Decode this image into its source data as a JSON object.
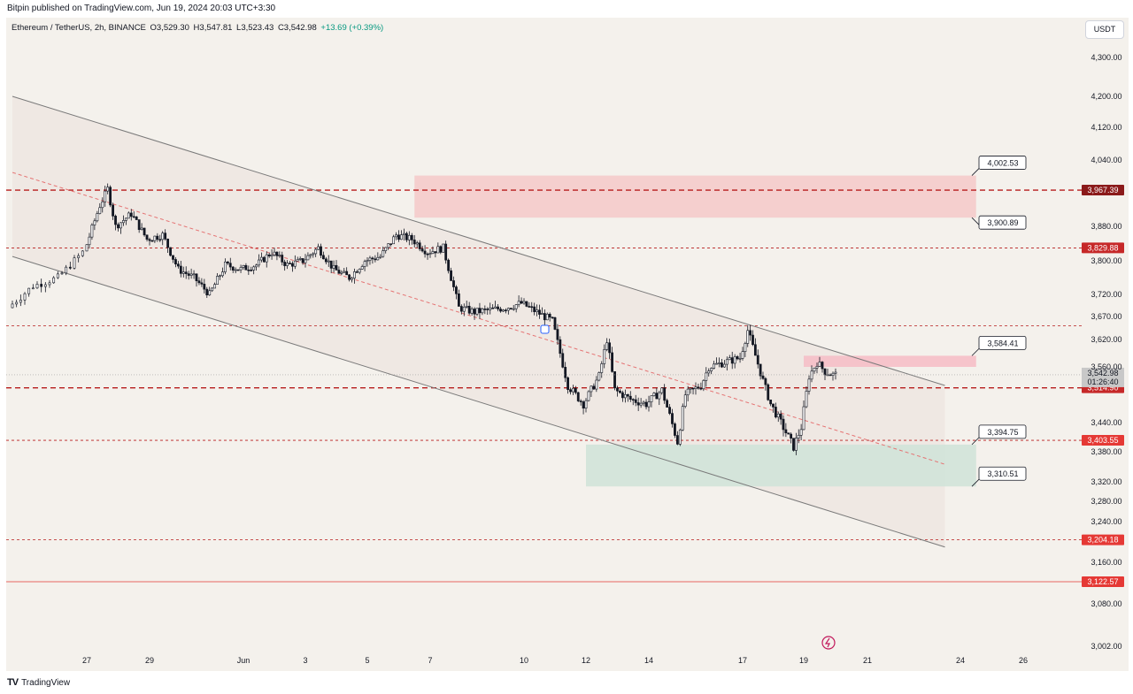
{
  "header": {
    "published_line": "Bitpin published on TradingView.com, Jun 19, 2024 20:03 UTC+3:30"
  },
  "legend": {
    "symbol": "Ethereum / TetherUS, 2h, BINANCE",
    "open": "O3,529.30",
    "high": "H3,547.81",
    "low": "L3,523.43",
    "close": "C3,542.98",
    "change": "+13.69 (+0.39%)"
  },
  "currency_button": "USDT",
  "footer": {
    "brand": "TradingView",
    "icon": "tradingview-logo-icon"
  },
  "colors": {
    "background": "#f4f1ec",
    "up_candle": "#131722",
    "resistance_zone": "#f4c9c9",
    "support_zone": "#cfe3d8",
    "dashed_level": "#b71c1c",
    "price_label_red": "#e53935",
    "price_label_dark": "#8b1a1a"
  },
  "chart_data": {
    "type": "candlestick",
    "symbol": "Ethereum / TetherUS",
    "interval": "2h",
    "exchange": "BINANCE",
    "y_range": [
      2980,
      4330
    ],
    "x_range_days": [
      "May 25",
      "Jun 26"
    ],
    "y_ticks": [
      "4,300.00",
      "4,200.00",
      "4,120.00",
      "4,040.00",
      "3,880.00",
      "3,800.00",
      "3,720.00",
      "3,670.00",
      "3,620.00",
      "3,560.00",
      "3,440.00",
      "3,380.00",
      "3,320.00",
      "3,280.00",
      "3,240.00",
      "3,160.00",
      "3,080.00",
      "3,002.00"
    ],
    "y_tick_values": [
      4300,
      4200,
      4120,
      4040,
      3880,
      3800,
      3720,
      3670,
      3620,
      3560,
      3440,
      3380,
      3320,
      3280,
      3240,
      3160,
      3080,
      3002
    ],
    "x_ticks": [
      {
        "label": "27",
        "date": "2024-05-27"
      },
      {
        "label": "29",
        "date": "2024-05-29"
      },
      {
        "label": "Jun",
        "date": "2024-06-01"
      },
      {
        "label": "3",
        "date": "2024-06-03"
      },
      {
        "label": "5",
        "date": "2024-06-05"
      },
      {
        "label": "7",
        "date": "2024-06-07"
      },
      {
        "label": "10",
        "date": "2024-06-10"
      },
      {
        "label": "12",
        "date": "2024-06-12"
      },
      {
        "label": "14",
        "date": "2024-06-14"
      },
      {
        "label": "17",
        "date": "2024-06-17"
      },
      {
        "label": "19",
        "date": "2024-06-19"
      },
      {
        "label": "21",
        "date": "2024-06-21"
      },
      {
        "label": "24",
        "date": "2024-06-24"
      },
      {
        "label": "26",
        "date": "2024-06-26"
      }
    ],
    "price_path": [
      [
        "2024-05-25T12:00",
        3690
      ],
      [
        "2024-05-26T00:00",
        3740
      ],
      [
        "2024-05-26T12:00",
        3760
      ],
      [
        "2024-05-27T00:00",
        3820
      ],
      [
        "2024-05-27T12:00",
        3930
      ],
      [
        "2024-05-27T18:00",
        3970
      ],
      [
        "2024-05-28T00:00",
        3880
      ],
      [
        "2024-05-28T12:00",
        3910
      ],
      [
        "2024-05-29T00:00",
        3850
      ],
      [
        "2024-05-29T12:00",
        3860
      ],
      [
        "2024-05-30T00:00",
        3780
      ],
      [
        "2024-05-30T12:00",
        3760
      ],
      [
        "2024-05-31T00:00",
        3720
      ],
      [
        "2024-05-31T12:00",
        3790
      ],
      [
        "2024-06-01T00:00",
        3780
      ],
      [
        "2024-06-01T12:00",
        3790
      ],
      [
        "2024-06-02T00:00",
        3820
      ],
      [
        "2024-06-02T12:00",
        3790
      ],
      [
        "2024-06-03T00:00",
        3800
      ],
      [
        "2024-06-03T12:00",
        3830
      ],
      [
        "2024-06-04T00:00",
        3780
      ],
      [
        "2024-06-04T12:00",
        3760
      ],
      [
        "2024-06-05T00:00",
        3800
      ],
      [
        "2024-06-05T12:00",
        3810
      ],
      [
        "2024-06-06T00:00",
        3860
      ],
      [
        "2024-06-06T12:00",
        3850
      ],
      [
        "2024-06-07T00:00",
        3820
      ],
      [
        "2024-06-07T12:00",
        3830
      ],
      [
        "2024-06-08T00:00",
        3690
      ],
      [
        "2024-06-08T12:00",
        3680
      ],
      [
        "2024-06-09T00:00",
        3685
      ],
      [
        "2024-06-09T12:00",
        3690
      ],
      [
        "2024-06-10T00:00",
        3700
      ],
      [
        "2024-06-10T12:00",
        3680
      ],
      [
        "2024-06-11T00:00",
        3660
      ],
      [
        "2024-06-11T12:00",
        3520
      ],
      [
        "2024-06-12T00:00",
        3480
      ],
      [
        "2024-06-12T12:00",
        3540
      ],
      [
        "2024-06-12T18:00",
        3620
      ],
      [
        "2024-06-13T00:00",
        3510
      ],
      [
        "2024-06-13T12:00",
        3490
      ],
      [
        "2024-06-14T00:00",
        3480
      ],
      [
        "2024-06-14T12:00",
        3510
      ],
      [
        "2024-06-15T00:00",
        3400
      ],
      [
        "2024-06-15T06:00",
        3500
      ],
      [
        "2024-06-15T18:00",
        3520
      ],
      [
        "2024-06-16T00:00",
        3560
      ],
      [
        "2024-06-16T12:00",
        3570
      ],
      [
        "2024-06-17T00:00",
        3580
      ],
      [
        "2024-06-17T06:00",
        3640
      ],
      [
        "2024-06-17T18:00",
        3530
      ],
      [
        "2024-06-18T00:00",
        3480
      ],
      [
        "2024-06-18T12:00",
        3420
      ],
      [
        "2024-06-18T18:00",
        3390
      ],
      [
        "2024-06-19T00:00",
        3430
      ],
      [
        "2024-06-19T06:00",
        3540
      ],
      [
        "2024-06-19T12:00",
        3570
      ],
      [
        "2024-06-19T18:00",
        3550
      ],
      [
        "2024-06-20T00:00",
        3543
      ]
    ],
    "levels": [
      {
        "price": 3967.39,
        "label": "3,967.39",
        "style": "dashed-heavy",
        "label_bg": "#8b1a1a"
      },
      {
        "price": 3829.88,
        "label": "3,829.88",
        "style": "dashed",
        "label_bg": "#c62828"
      },
      {
        "price": 3650,
        "label": "",
        "style": "dashed",
        "label_bg": ""
      },
      {
        "price": 3514.9,
        "label": "3,514.90",
        "style": "dashed-heavy",
        "label_bg": "#c62828"
      },
      {
        "price": 3403.55,
        "label": "3,403.55",
        "style": "dashed",
        "label_bg": "#e53935"
      },
      {
        "price": 3204.18,
        "label": "3,204.18",
        "style": "dashed",
        "label_bg": "#e53935"
      },
      {
        "price": 3122.57,
        "label": "3,122.57",
        "style": "solid",
        "label_bg": "#e53935"
      }
    ],
    "current_price": {
      "price": 3542.98,
      "label": "3,542.98",
      "countdown": "01:26:40"
    },
    "zones": [
      {
        "name": "resistance",
        "from": "2024-06-06T12:00",
        "to": "2024-06-24T12:00",
        "top": 4002.53,
        "bottom": 3900.89,
        "color": "#f4c9c9"
      },
      {
        "name": "supply",
        "from": "2024-06-19T00:00",
        "to": "2024-06-24T12:00",
        "top": 3584.41,
        "bottom": 3560,
        "color": "#f6bcc6"
      },
      {
        "name": "support",
        "from": "2024-06-12T00:00",
        "to": "2024-06-24T12:00",
        "top": 3394.75,
        "bottom": 3310.51,
        "color": "#cfe3d8"
      }
    ],
    "callouts": [
      {
        "text": "4,002.53",
        "price": 4002.53
      },
      {
        "text": "3,900.89",
        "price": 3900.89
      },
      {
        "text": "3,584.41",
        "price": 3584.41
      },
      {
        "text": "3,394.75",
        "price": 3394.75
      },
      {
        "text": "3,310.51",
        "price": 3310.51
      }
    ],
    "channel": {
      "upper": [
        [
          "2024-05-25T12:00",
          4200
        ],
        [
          "2024-06-23T12:00",
          3520
        ]
      ],
      "lower": [
        [
          "2024-05-25T12:00",
          3810
        ],
        [
          "2024-06-23T12:00",
          3190
        ]
      ],
      "mid": [
        [
          "2024-05-25T12:00",
          4010
        ],
        [
          "2024-06-23T12:00",
          3355
        ]
      ]
    }
  }
}
